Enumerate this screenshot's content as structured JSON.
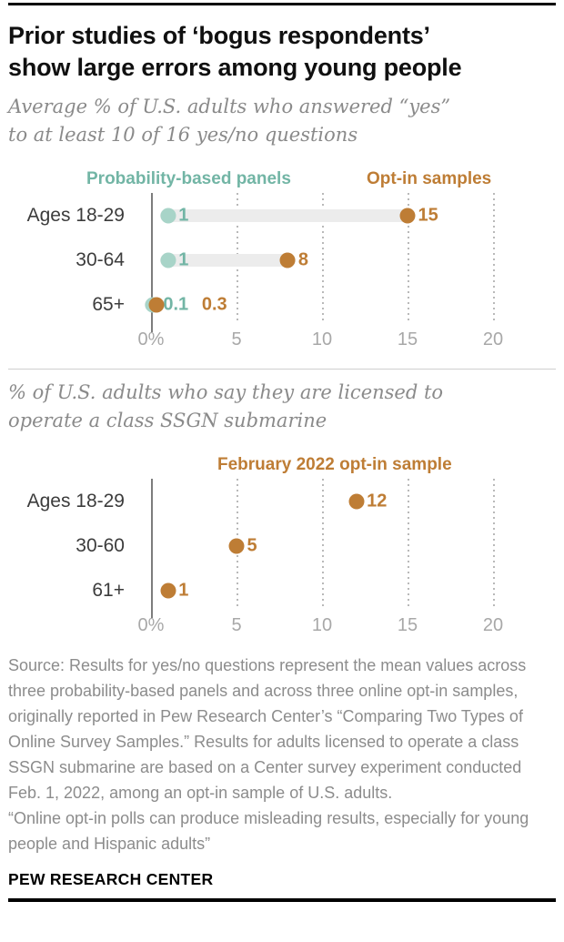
{
  "title": {
    "line1": "Prior studies of ‘bogus respondents’",
    "line2": "show large errors among young people"
  },
  "footer": "PEW RESEARCH CENTER",
  "source_text": "Source: Results for yes/no questions represent the mean values across three probability-based panels and across three online opt-in samples, originally reported in Pew Research Center’s “Comparing Two Types of Online Survey Samples.” Results for adults licensed to operate a class SSGN submarine are based on a Center survey experiment conducted Feb. 1, 2022, among an opt-in sample of U.S. adults.",
  "quote_text": "“Online opt-in polls can produce misleading results, especially for young people and Hispanic adults”",
  "colors": {
    "teal_text": "#72B5A5",
    "teal_dot": "#A8D4C8",
    "orange": "#BE7D35",
    "track": "#ECECEC",
    "grid_dotted": "#b9b9b9",
    "zero_line": "#7d7d7d",
    "axis_text": "#a8a8a8",
    "row_label_text": "#3c3c3c",
    "subtitle_text": "#8a8a8a",
    "source_text": "#8c8c8c",
    "bar_black": "#000000"
  },
  "chart_data": [
    {
      "type": "scatter",
      "variant": "dumbbell-dot-plot",
      "title_line1": "Average % of U.S. adults who answered “yes”",
      "title_line2": "to at least 10 of 16 yes/no questions",
      "categories": [
        "Ages 18-29",
        "30-64",
        "65+"
      ],
      "series": [
        {
          "name": "Probability-based panels",
          "values": [
            1,
            1,
            0.1
          ],
          "dot_color": "#A8D4C8",
          "text_color": "#72B5A5"
        },
        {
          "name": "Opt-in samples",
          "values": [
            15,
            8,
            0.3
          ],
          "dot_color": "#BE7D35",
          "text_color": "#BE7D35"
        }
      ],
      "xlabel": "",
      "ylabel": "",
      "xlim": [
        0,
        20
      ],
      "xticks": [
        "0%",
        "5",
        "10",
        "15",
        "20"
      ],
      "xticks_values": [
        0,
        5,
        10,
        15,
        20
      ],
      "grid": "vertical-dotted",
      "legend_position": "top"
    },
    {
      "type": "scatter",
      "variant": "dot-plot",
      "title_line1": "% of U.S. adults who say they are licensed to",
      "title_line2": "operate a class SSGN submarine",
      "categories": [
        "Ages 18-29",
        "30-60",
        "61+"
      ],
      "series": [
        {
          "name": "February 2022 opt-in sample",
          "values": [
            12,
            5,
            1
          ],
          "dot_color": "#BE7D35",
          "text_color": "#BE7D35"
        }
      ],
      "xlabel": "",
      "ylabel": "",
      "xlim": [
        0,
        20
      ],
      "xticks": [
        "0%",
        "5",
        "10",
        "15",
        "20"
      ],
      "xticks_values": [
        0,
        5,
        10,
        15,
        20
      ],
      "grid": "vertical-dotted",
      "legend_position": "top"
    }
  ]
}
